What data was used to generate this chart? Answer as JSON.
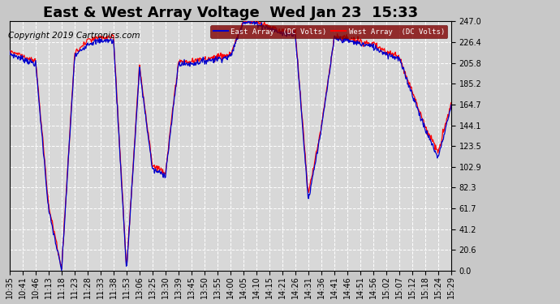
{
  "title": "East & West Array Voltage  Wed Jan 23  15:33",
  "copyright": "Copyright 2019 Cartronics.com",
  "legend_labels": [
    "East Array  (DC Volts)",
    "West Array  (DC Volts)"
  ],
  "east_color": "#0000cc",
  "west_color": "#ff0000",
  "fig_bg": "#c8c8c8",
  "plot_bg": "#d8d8d8",
  "grid_color": "#ffffff",
  "ylim": [
    0.0,
    247.0
  ],
  "yticks": [
    0.0,
    20.6,
    41.2,
    61.7,
    82.3,
    102.9,
    123.5,
    144.1,
    164.7,
    185.2,
    205.8,
    226.4,
    247.0
  ],
  "x_labels": [
    "10:35",
    "10:41",
    "10:46",
    "11:13",
    "11:18",
    "11:23",
    "11:28",
    "11:33",
    "11:38",
    "11:53",
    "13:06",
    "13:25",
    "13:30",
    "13:39",
    "13:45",
    "13:50",
    "13:55",
    "14:00",
    "14:05",
    "14:10",
    "14:15",
    "14:21",
    "14:26",
    "14:31",
    "14:36",
    "14:41",
    "14:46",
    "14:51",
    "14:56",
    "15:02",
    "15:07",
    "15:12",
    "15:18",
    "15:24",
    "15:29"
  ],
  "east_y": [
    215,
    210,
    205,
    60,
    0,
    212,
    225,
    228,
    228,
    0,
    200,
    100,
    95,
    205,
    205,
    208,
    210,
    212,
    247,
    245,
    240,
    235,
    235,
    70,
    140,
    230,
    228,
    225,
    222,
    215,
    210,
    175,
    140,
    112,
    163
  ],
  "west_y": [
    218,
    213,
    207,
    65,
    2,
    215,
    228,
    231,
    231,
    2,
    203,
    104,
    98,
    207,
    207,
    210,
    212,
    214,
    247,
    246,
    242,
    237,
    237,
    75,
    143,
    232,
    230,
    227,
    224,
    217,
    212,
    178,
    143,
    117,
    166
  ],
  "title_fontsize": 13,
  "tick_fontsize": 7,
  "copyright_fontsize": 7.5,
  "linewidth": 0.9
}
